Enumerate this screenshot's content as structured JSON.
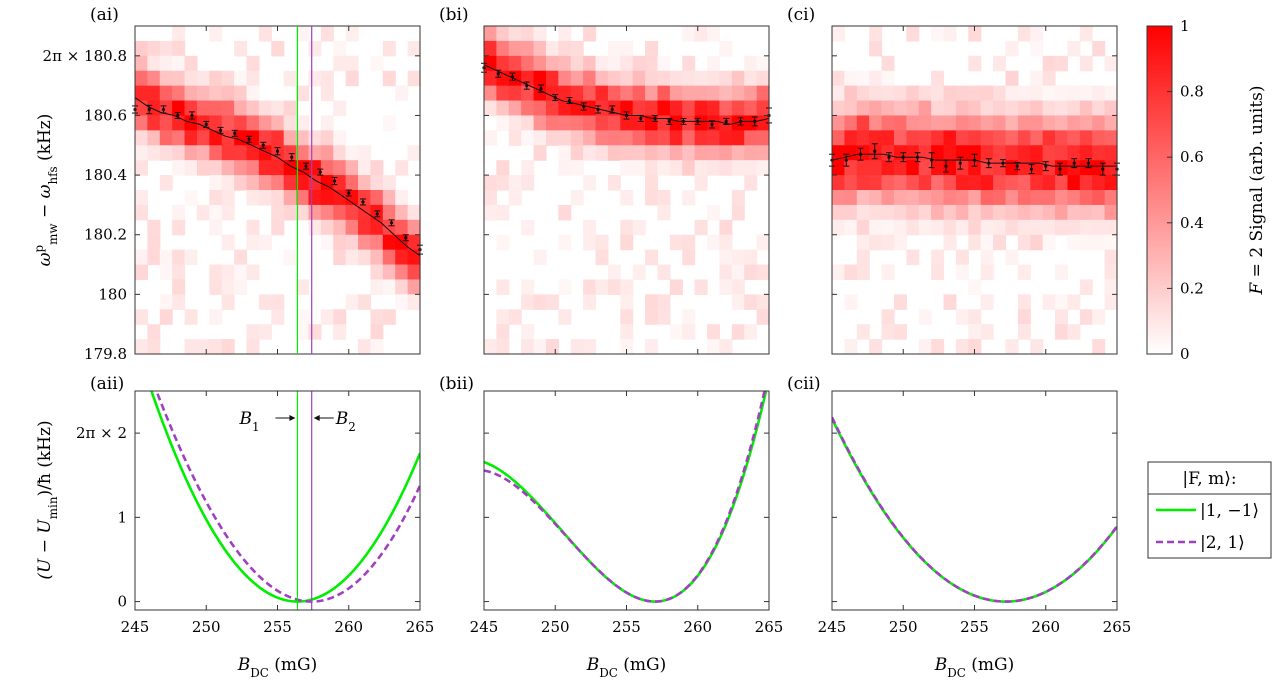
{
  "chart_data": {
    "type": "figure",
    "shared_x": {
      "label_main": "B",
      "label_sub": "DC",
      "label_unit": " (mG)",
      "range": [
        245,
        265
      ],
      "ticks": [
        245,
        250,
        255,
        260,
        265
      ],
      "tick_labels": [
        "245",
        "250",
        "255",
        "260",
        "265"
      ]
    },
    "top_row": {
      "type": "heatmap",
      "ylabel_parts": {
        "omega": "ω",
        "sup": "p",
        "sub1": "mw",
        "minus": " − ω",
        "sub2": "hfs",
        "unit": " (kHz)"
      },
      "y_range": [
        179.8,
        180.9
      ],
      "y_ticks": [
        179.8,
        180,
        180.2,
        180.4,
        180.6,
        180.8
      ],
      "y_tick_labels": [
        "179.8",
        "180",
        "180.2",
        "180.4",
        "180.6",
        "2π × 180.8"
      ],
      "colorbar": {
        "range": [
          0,
          1
        ],
        "ticks": [
          0,
          0.2,
          0.4,
          0.6,
          0.8,
          1
        ],
        "tick_labels": [
          "0",
          "0.2",
          "0.4",
          "0.6",
          "0.8",
          "1"
        ],
        "label_prefix": "F",
        "label_rest": " = 2 Signal (arb. units)",
        "color_low": "#ffffff",
        "color_high": "#ff0000"
      },
      "panels": [
        {
          "label": "(ai)",
          "fit_centers": [
            180.66,
            180.63,
            180.61,
            180.6,
            180.58,
            180.57,
            180.55,
            180.53,
            180.52,
            180.5,
            180.48,
            180.46,
            180.43,
            180.41,
            180.38,
            180.36,
            180.33,
            180.3,
            180.27,
            180.24,
            180.2,
            180.16,
            180.13
          ],
          "points_x": [
            245,
            246,
            247,
            248,
            249,
            250,
            251,
            252,
            253,
            254,
            255,
            256,
            257,
            258,
            259,
            260,
            261,
            262,
            263,
            264,
            265
          ],
          "points_y": [
            180.62,
            180.62,
            180.62,
            180.6,
            180.6,
            180.57,
            180.55,
            180.54,
            180.52,
            180.5,
            180.48,
            180.46,
            180.43,
            180.41,
            180.38,
            180.34,
            180.31,
            180.27,
            180.24,
            180.19,
            180.15
          ],
          "err": [
            0.012,
            0.014,
            0.012,
            0.01,
            0.012,
            0.01,
            0.01,
            0.01,
            0.01,
            0.01,
            0.012,
            0.012,
            0.01,
            0.01,
            0.012,
            0.01,
            0.01,
            0.01,
            0.01,
            0.01,
            0.015
          ],
          "width": 0.1,
          "markers": [
            256.4,
            257.4
          ]
        },
        {
          "label": "(bi)",
          "fit_centers": [
            180.77,
            180.75,
            180.73,
            180.71,
            180.69,
            180.67,
            180.65,
            180.64,
            180.63,
            180.62,
            180.61,
            180.6,
            180.6,
            180.59,
            180.59,
            180.58,
            180.58,
            180.58,
            180.58,
            180.57,
            180.58,
            180.58,
            180.59
          ],
          "points_x": [
            245,
            246,
            247,
            248,
            249,
            250,
            251,
            252,
            253,
            254,
            255,
            256,
            257,
            258,
            259,
            260,
            261,
            262,
            263,
            264,
            265
          ],
          "points_y": [
            180.76,
            180.74,
            180.73,
            180.7,
            180.69,
            180.66,
            180.65,
            180.63,
            180.62,
            180.62,
            180.6,
            180.59,
            180.59,
            180.58,
            180.58,
            180.58,
            180.57,
            180.58,
            180.58,
            180.58,
            180.6
          ],
          "err": [
            0.015,
            0.012,
            0.012,
            0.012,
            0.012,
            0.01,
            0.01,
            0.012,
            0.012,
            0.012,
            0.012,
            0.01,
            0.01,
            0.01,
            0.01,
            0.01,
            0.012,
            0.01,
            0.012,
            0.015,
            0.025
          ],
          "width": 0.1,
          "markers": []
        },
        {
          "label": "(ci)",
          "fit_centers": [
            180.45,
            180.46,
            180.47,
            180.47,
            180.47,
            180.46,
            180.46,
            180.46,
            180.45,
            180.45,
            180.45,
            180.45,
            180.44,
            180.44,
            180.44,
            180.44,
            180.44,
            180.43,
            180.43,
            180.43,
            180.43,
            180.43,
            180.43
          ],
          "points_x": [
            245,
            246,
            247,
            248,
            249,
            250,
            251,
            252,
            253,
            254,
            255,
            256,
            257,
            258,
            259,
            260,
            261,
            262,
            263,
            264,
            265
          ],
          "points_y": [
            180.45,
            180.45,
            180.47,
            180.48,
            180.46,
            180.46,
            180.46,
            180.45,
            180.43,
            180.44,
            180.45,
            180.44,
            180.44,
            180.43,
            180.42,
            180.43,
            180.42,
            180.44,
            180.44,
            180.42,
            180.42
          ],
          "err": [
            0.02,
            0.02,
            0.02,
            0.025,
            0.015,
            0.015,
            0.015,
            0.025,
            0.02,
            0.02,
            0.02,
            0.015,
            0.012,
            0.012,
            0.015,
            0.015,
            0.02,
            0.015,
            0.015,
            0.02,
            0.02
          ],
          "width": 0.14,
          "markers": []
        }
      ]
    },
    "bottom_row": {
      "type": "line",
      "ylabel_parts": {
        "main": "(U − U",
        "sub": "min",
        "rest": ")/ħ (kHz)"
      },
      "y_range": [
        -0.1,
        2.5
      ],
      "y_ticks": [
        0,
        1,
        2
      ],
      "y_tick_labels": [
        "0",
        "1",
        "2π × 2"
      ],
      "panels": [
        {
          "label": "(aii)",
          "series": [
            {
              "name": "|1,−1⟩",
              "style": "solid",
              "color": "#00ee00",
              "x0": 256.4,
              "a": 0.0238,
              "b": 0.0,
              "c": 0
            },
            {
              "name": "|2,1⟩",
              "style": "dashed",
              "color": "#a040c0",
              "x0": 257.4,
              "a": 0.0227,
              "b": 0.00015,
              "c": 0
            }
          ],
          "markers": [
            256.4,
            257.4
          ],
          "annotation": {
            "b1_main": "B",
            "b1_sub": "1",
            "b2_main": "B",
            "b2_sub": "2"
          }
        },
        {
          "label": "(bii)",
          "series": [
            {
              "name": "|1,−1⟩",
              "style": "solid",
              "color": "#00ee00",
              "x0": 257.0,
              "a": 0.0295,
              "b": 0.0015,
              "c": 0
            },
            {
              "name": "|2,1⟩",
              "style": "dashed",
              "color": "#a040c0",
              "x0": 257.0,
              "a": 0.03,
              "b": 0.0016,
              "c": 0
            }
          ],
          "markers": []
        },
        {
          "label": "(cii)",
          "series": [
            {
              "name": "|1,−1⟩",
              "style": "solid",
              "color": "#00ee00",
              "x0": 257.2,
              "a": 0.0146,
              "b": 0.0,
              "c": 0
            },
            {
              "name": "|2,1⟩",
              "style": "dashed",
              "color": "#a040c0",
              "x0": 257.2,
              "a": 0.0147,
              "b": 0.0,
              "c": 0
            }
          ],
          "markers": []
        }
      ],
      "legend": {
        "title": "|F, m⟩:",
        "entries": [
          {
            "label": "|1, −1⟩",
            "style": "solid",
            "color": "#00ee00"
          },
          {
            "label": "|2, 1⟩",
            "style": "dashed",
            "color": "#a040c0"
          }
        ],
        "placement": "right"
      }
    },
    "marker_colors": {
      "B1": "#00ee00",
      "B2": "#a040c0"
    }
  }
}
